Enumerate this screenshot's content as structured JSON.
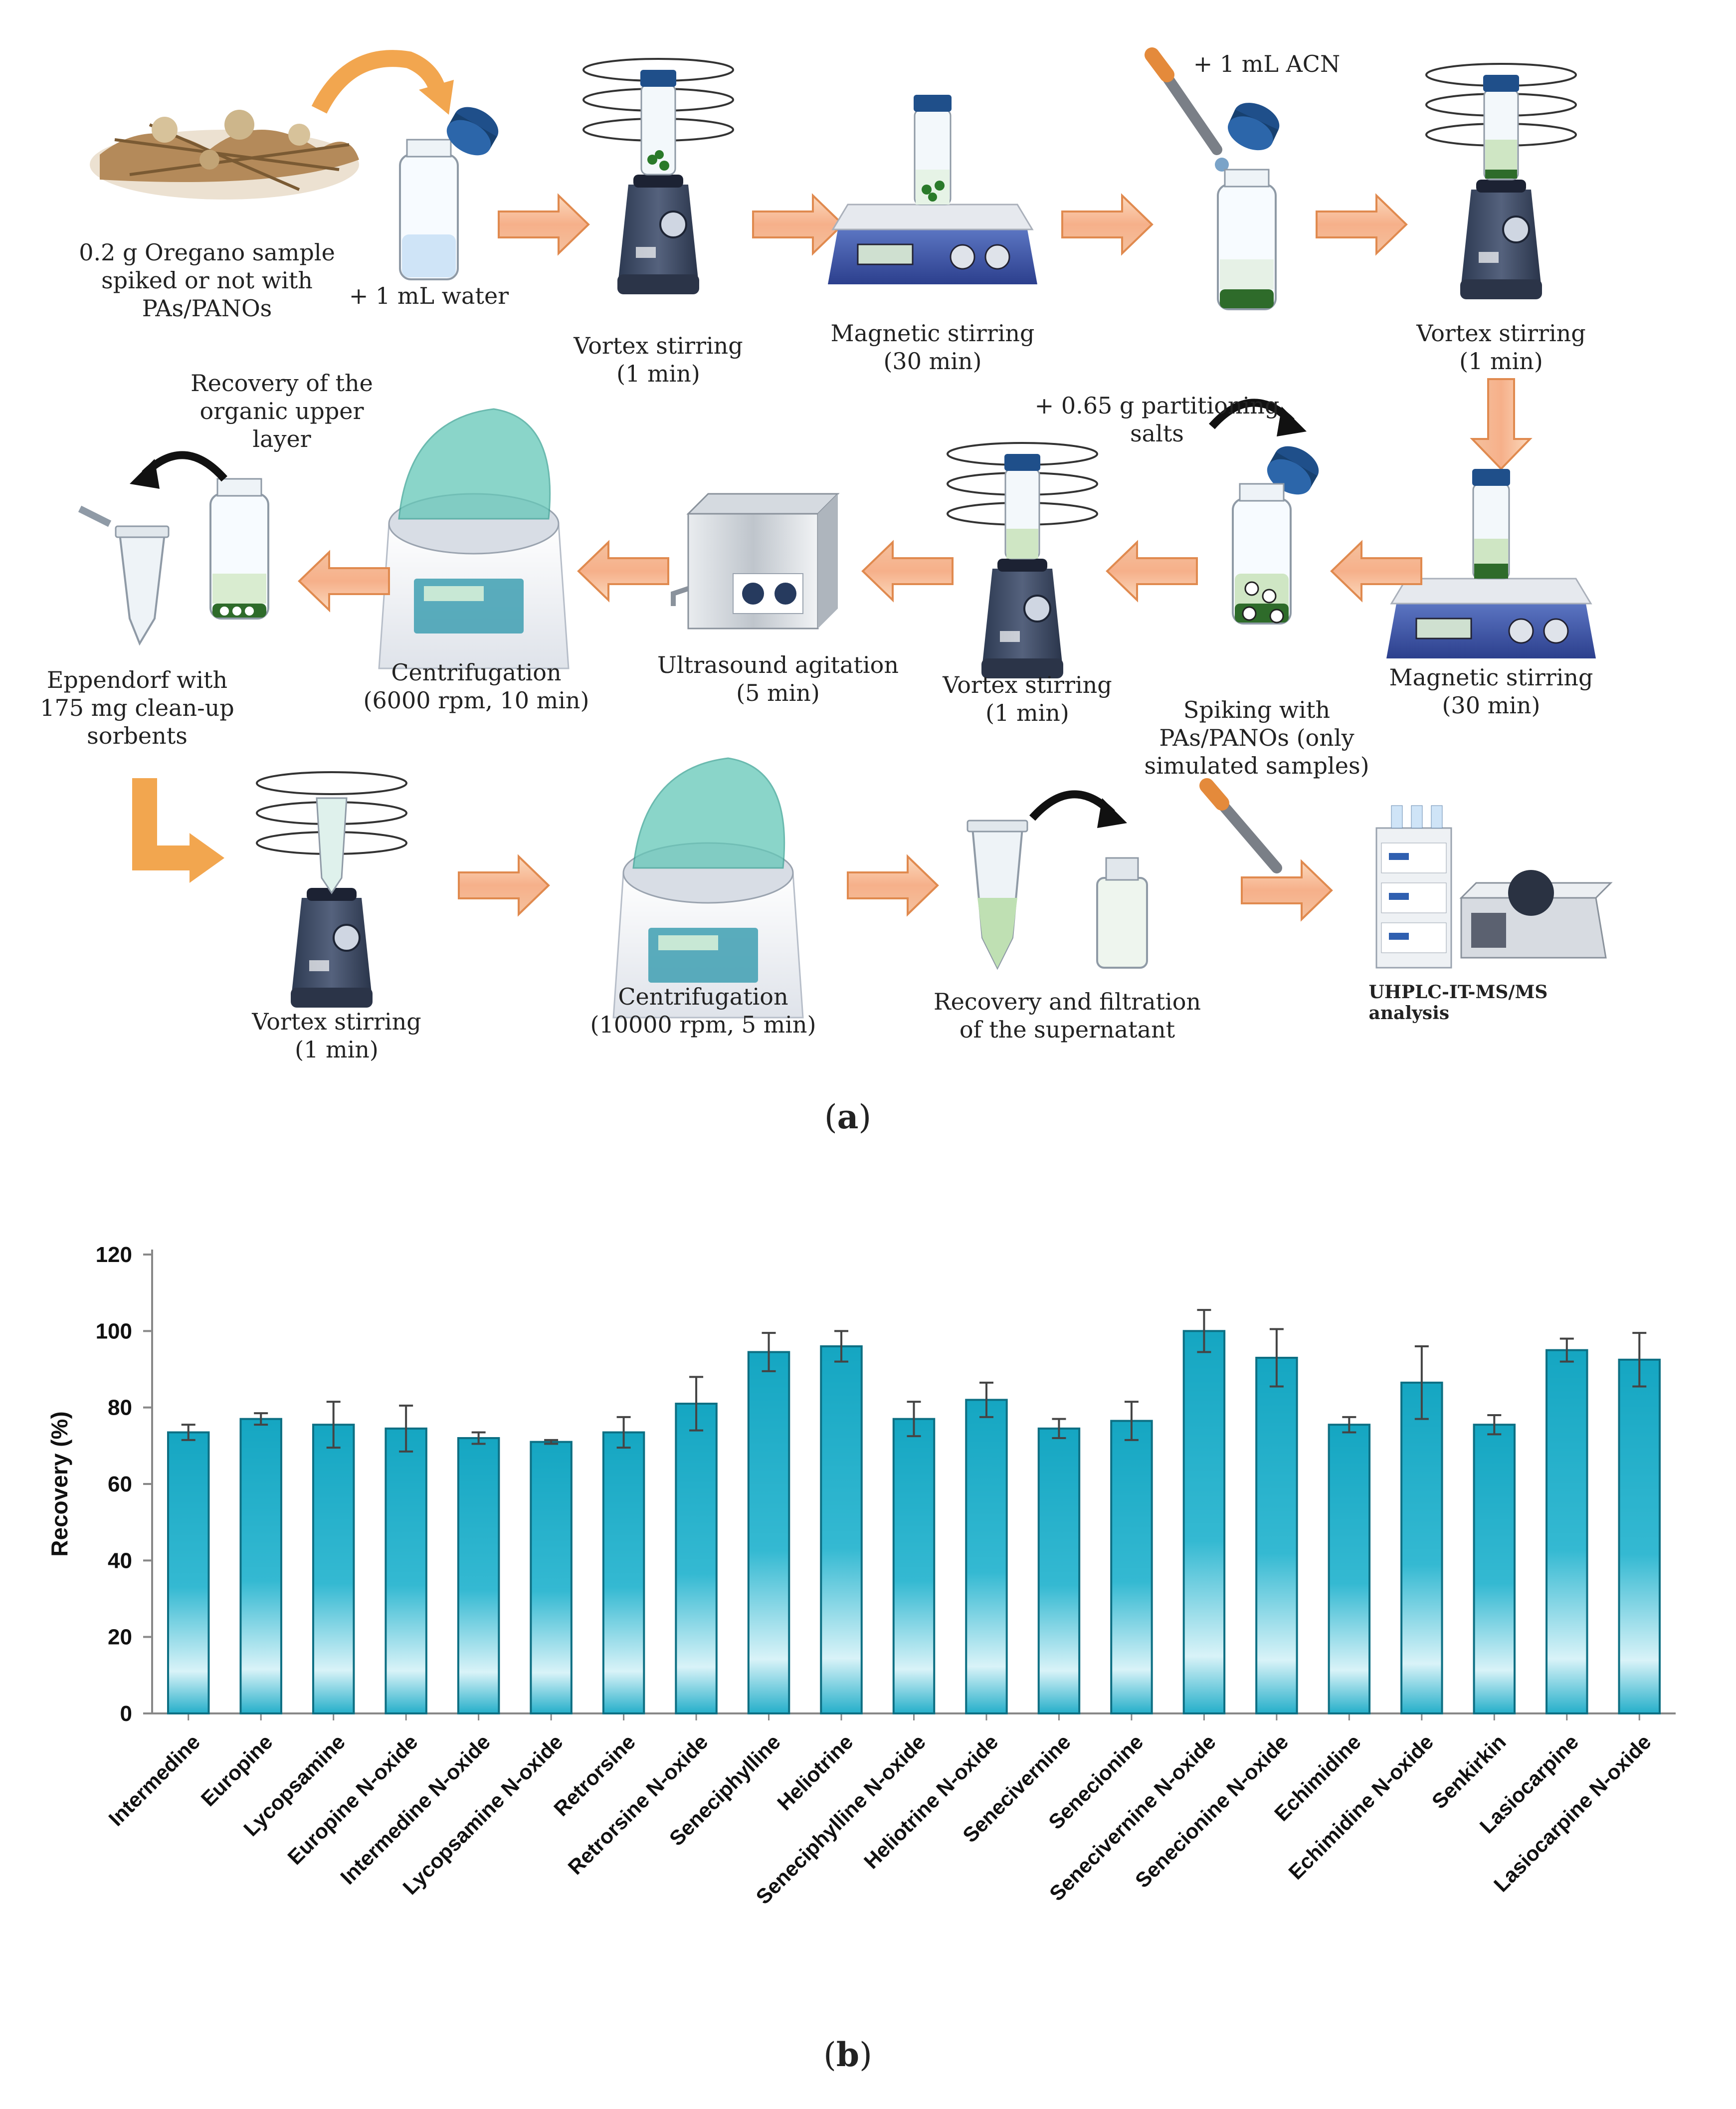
{
  "panel_a": {
    "label_open": "(",
    "label_letter": "a",
    "label_close": ")",
    "steps": {
      "s1": "0.2 g Oregano sample\nspiked or not with\nPAs/PANOs",
      "s1b": "+ 1 mL water",
      "s2": "Vortex stirring\n(1 min)",
      "s3": "Magnetic stirring\n(30 min)",
      "s4": "+ 1 mL ACN",
      "s5": "Vortex stirring\n(1 min)",
      "s6": "Magnetic stirring\n(30 min)",
      "s7": "+ 0.65 g partitioning\nsalts",
      "s8": "Vortex stirring\n(1 min)",
      "s9": "Ultrasound agitation\n(5 min)",
      "s10": "Centrifugation\n(6000 rpm, 10 min)",
      "s11": "Recovery of the\norganic upper\nlayer",
      "s12": "Eppendorf with\n175 mg clean-up\nsorbents",
      "s13": "Vortex stirring\n(1 min)",
      "s14": "Centrifugation\n(10000 rpm, 5 min)",
      "s15": "Recovery and filtration\nof the supernatant",
      "s16": "Spiking with\nPAs/PANOs (only\nsimulated samples)",
      "s17": "UHPLC-IT-MS/MS analysis"
    }
  },
  "panel_b": {
    "label_open": "(",
    "label_letter": "b",
    "label_close": ")"
  },
  "colors": {
    "arrow_fill": "#f6b98a",
    "arrow_stroke": "#e58a4a",
    "bar_top": "#18a9c4",
    "bar_mid": "#2fb7cf",
    "bar_light": "#d9f3f8",
    "bar_stroke": "#0d6f83",
    "green_liquid": "#2e6b2a",
    "light_liquid": "#cfe6c4",
    "cap": "#1f4f8a"
  },
  "chart_data": {
    "type": "bar",
    "ylabel": "Recovery (%)",
    "xlabel": "",
    "ylim": [
      0,
      120
    ],
    "yticks": [
      0,
      20,
      40,
      60,
      80,
      100,
      120
    ],
    "grid": false,
    "categories": [
      "Intermedine",
      "Europine",
      "Lycopsamine",
      "Europine N-oxide",
      "Intermedine N-oxide",
      "Lycopsamine N-oxide",
      "Retrorsine",
      "Retrorsine N-oxide",
      "Seneciphylline",
      "Heliotrine",
      "Seneciphylline N-oxide",
      "Heliotrine N-oxide",
      "Senecivernine",
      "Senecionine",
      "Senecivernine N-oxide",
      "Senecionine N-oxide",
      "Echimidine",
      "Echimidine N-oxide",
      "Senkirkin",
      "Lasiocarpine",
      "Lasiocarpine N-oxide"
    ],
    "values": [
      73.5,
      77,
      75.5,
      74.5,
      72,
      71,
      73.5,
      81,
      94.5,
      96,
      77,
      82,
      74.5,
      76.5,
      100,
      93,
      75.5,
      86.5,
      75.5,
      95,
      92.5
    ],
    "errors": [
      2,
      1.5,
      6,
      6,
      1.5,
      0.5,
      4,
      7,
      5,
      4,
      4.5,
      4.5,
      2.5,
      5,
      5.5,
      7.5,
      2,
      9.5,
      2.5,
      3,
      7
    ]
  }
}
